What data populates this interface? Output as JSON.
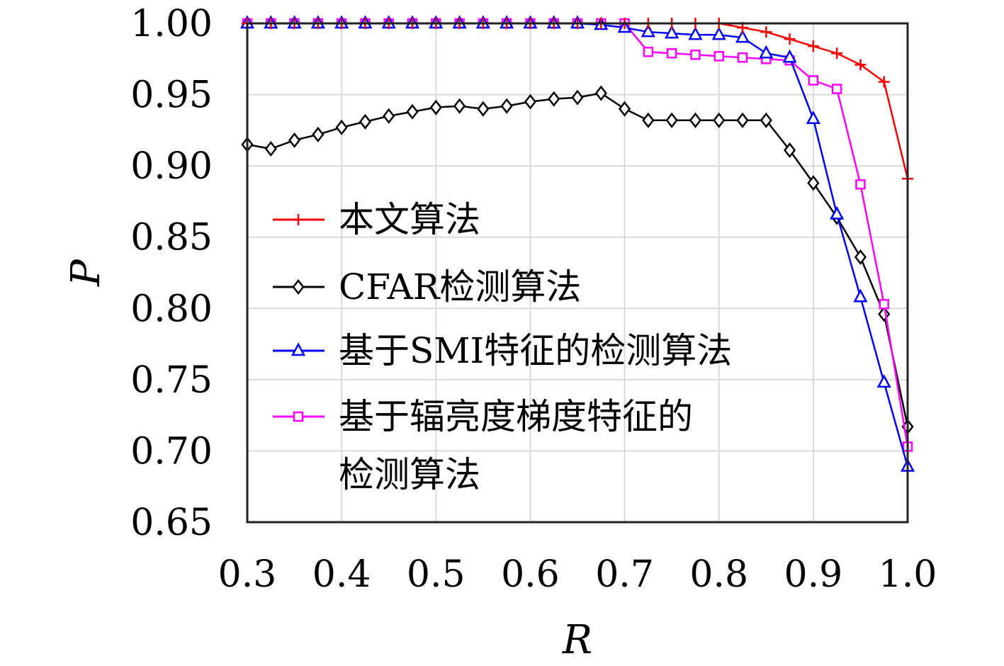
{
  "chart_data": {
    "type": "line",
    "title": "",
    "xlabel": "R",
    "ylabel": "P",
    "xlim": [
      0.3,
      1.0
    ],
    "ylim": [
      0.65,
      1.0
    ],
    "xticks": [
      0.3,
      0.4,
      0.5,
      0.6,
      0.7,
      0.8,
      0.9,
      1.0
    ],
    "xtick_labels": [
      "0.3",
      "0.4",
      "0.5",
      "0.6",
      "0.7",
      "0.8",
      "0.9",
      "1.0"
    ],
    "yticks": [
      0.65,
      0.7,
      0.75,
      0.8,
      0.85,
      0.9,
      0.95,
      1.0
    ],
    "ytick_labels": [
      "0.65",
      "0.70",
      "0.75",
      "0.80",
      "0.85",
      "0.90",
      "0.95",
      "1.00"
    ],
    "grid": true,
    "legend_position": "lower-left",
    "series": [
      {
        "name": "本文算法",
        "color": "#ff0000",
        "marker": "plus",
        "x": [
          0.3,
          0.325,
          0.35,
          0.375,
          0.4,
          0.425,
          0.45,
          0.475,
          0.5,
          0.525,
          0.55,
          0.575,
          0.6,
          0.625,
          0.65,
          0.675,
          0.7,
          0.725,
          0.75,
          0.775,
          0.8,
          0.825,
          0.85,
          0.875,
          0.9,
          0.925,
          0.95,
          0.975,
          1.0
        ],
        "y": [
          1.0,
          1.0,
          1.0,
          1.0,
          1.0,
          1.0,
          1.0,
          1.0,
          1.0,
          1.0,
          1.0,
          1.0,
          1.0,
          1.0,
          1.0,
          1.0,
          1.0,
          1.0,
          1.0,
          1.0,
          1.0,
          0.997,
          0.994,
          0.989,
          0.984,
          0.979,
          0.971,
          0.959,
          0.891
        ]
      },
      {
        "name": "CFAR检测算法",
        "color": "#000000",
        "marker": "diamond",
        "x": [
          0.3,
          0.325,
          0.35,
          0.375,
          0.4,
          0.425,
          0.45,
          0.475,
          0.5,
          0.525,
          0.55,
          0.575,
          0.6,
          0.625,
          0.65,
          0.675,
          0.7,
          0.725,
          0.75,
          0.775,
          0.8,
          0.825,
          0.85,
          0.875,
          0.9,
          0.925,
          0.95,
          0.975,
          1.0
        ],
        "y": [
          0.915,
          0.912,
          0.918,
          0.922,
          0.927,
          0.931,
          0.935,
          0.938,
          0.941,
          0.942,
          0.94,
          0.942,
          0.945,
          0.947,
          0.948,
          0.951,
          0.94,
          0.932,
          0.932,
          0.932,
          0.932,
          0.932,
          0.932,
          0.911,
          0.888,
          0.864,
          0.836,
          0.796,
          0.717
        ]
      },
      {
        "name": "基于SMI特征的检测算法",
        "color": "#0000ff",
        "marker": "triangle",
        "x": [
          0.3,
          0.325,
          0.35,
          0.375,
          0.4,
          0.425,
          0.45,
          0.475,
          0.5,
          0.525,
          0.55,
          0.575,
          0.6,
          0.625,
          0.65,
          0.675,
          0.7,
          0.725,
          0.75,
          0.775,
          0.8,
          0.825,
          0.85,
          0.875,
          0.9,
          0.925,
          0.95,
          0.975,
          1.0
        ],
        "y": [
          1.0,
          1.0,
          1.0,
          1.0,
          1.0,
          1.0,
          1.0,
          1.0,
          1.0,
          1.0,
          1.0,
          1.0,
          1.0,
          1.0,
          1.0,
          0.999,
          0.997,
          0.994,
          0.993,
          0.992,
          0.992,
          0.99,
          0.979,
          0.976,
          0.933,
          0.866,
          0.808,
          0.748,
          0.689
        ]
      },
      {
        "name": "基于辐亮度梯度特征的检测算法",
        "legend_lines": [
          "基于辐亮度梯度特征的",
          "检测算法"
        ],
        "color": "#ff00ff",
        "marker": "square",
        "x": [
          0.3,
          0.325,
          0.35,
          0.375,
          0.4,
          0.425,
          0.45,
          0.475,
          0.5,
          0.525,
          0.55,
          0.575,
          0.6,
          0.625,
          0.65,
          0.675,
          0.7,
          0.725,
          0.75,
          0.775,
          0.8,
          0.825,
          0.85,
          0.875,
          0.9,
          0.925,
          0.95,
          0.975,
          1.0
        ],
        "y": [
          1.0,
          1.0,
          1.0,
          1.0,
          1.0,
          1.0,
          1.0,
          1.0,
          1.0,
          1.0,
          1.0,
          1.0,
          1.0,
          1.0,
          1.0,
          1.0,
          1.0,
          0.98,
          0.979,
          0.978,
          0.977,
          0.976,
          0.975,
          0.974,
          0.96,
          0.954,
          0.887,
          0.803,
          0.703
        ]
      }
    ]
  }
}
